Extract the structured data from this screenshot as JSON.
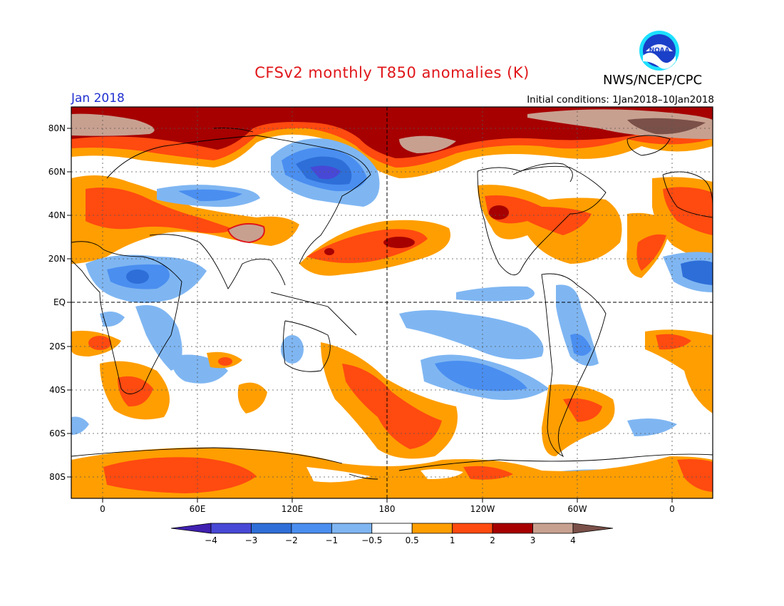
{
  "title": "CFSv2 monthly T850 anomalies (K)",
  "month_label": "Jan 2018",
  "initial_conditions": "Initial conditions: 1Jan2018–10Jan2018",
  "agency": "NWS/NCEP/CPC",
  "logo_text": "NOAA",
  "lat_labels": [
    "80N",
    "60N",
    "40N",
    "20N",
    "EQ",
    "20S",
    "40S",
    "60S",
    "80S"
  ],
  "lon_labels": [
    "0",
    "60E",
    "120E",
    "180",
    "120W",
    "60W",
    "0"
  ],
  "colorbar": {
    "tick_labels": [
      "−4",
      "−3",
      "−2",
      "−1",
      "−0.5",
      "0.5",
      "1",
      "2",
      "3",
      "4"
    ],
    "colors": [
      "#4020b0",
      "#4848d6",
      "#2e6ed8",
      "#4a8ef0",
      "#7fb6f2",
      "#ffffff",
      "#ff9e00",
      "#ff4a10",
      "#a60000",
      "#c8a090",
      "#7a5048"
    ],
    "units": "K"
  }
}
